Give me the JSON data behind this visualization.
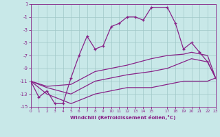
{
  "xlabel": "Windchill (Refroidissement éolien,°C)",
  "xlim": [
    0,
    23
  ],
  "ylim": [
    -15,
    1
  ],
  "yticks": [
    1,
    -1,
    -3,
    -5,
    -7,
    -9,
    -11,
    -13,
    -15
  ],
  "xticks": [
    0,
    1,
    2,
    3,
    4,
    5,
    6,
    7,
    8,
    9,
    10,
    11,
    12,
    13,
    14,
    15,
    17,
    18,
    19,
    20,
    21,
    22,
    23
  ],
  "bg_color": "#c8e8e8",
  "grid_color": "#a0c8c8",
  "line_color": "#882288",
  "line1_x": [
    0,
    1,
    2,
    3,
    4,
    5,
    6,
    7,
    8,
    9,
    10,
    11,
    12,
    13,
    14,
    15,
    17,
    18,
    19,
    20,
    21,
    22,
    23
  ],
  "line1_y": [
    -11,
    -13.5,
    -12.5,
    -14.5,
    -14.5,
    -10.5,
    -7,
    -4,
    -6,
    -5.5,
    -2.5,
    -2,
    -1,
    -1,
    -1.5,
    0.5,
    0.5,
    -2,
    -6,
    -5,
    -6.5,
    -8,
    -10.5
  ],
  "line2_x": [
    0,
    23
  ],
  "line2_y": [
    -11,
    -10.5
  ],
  "line3_x": [
    0,
    23
  ],
  "line3_y": [
    -11,
    -10.5
  ],
  "line4_x": [
    0,
    23
  ],
  "line4_y": [
    -11,
    -10.5
  ],
  "smooth2_x": [
    0,
    2,
    5,
    8,
    12,
    15,
    17,
    19,
    20,
    22,
    23
  ],
  "smooth2_y": [
    -11,
    -11.8,
    -11.5,
    -9.5,
    -8.5,
    -7.5,
    -7,
    -6.8,
    -6.5,
    -7,
    -10.5
  ],
  "smooth3_x": [
    0,
    2,
    5,
    8,
    12,
    15,
    17,
    19,
    20,
    22,
    23
  ],
  "smooth3_y": [
    -11,
    -12,
    -13,
    -11,
    -10,
    -9.5,
    -9,
    -8,
    -7.5,
    -8,
    -10.5
  ],
  "smooth4_x": [
    0,
    2,
    5,
    8,
    12,
    15,
    17,
    19,
    20,
    22,
    23
  ],
  "smooth4_y": [
    -11,
    -13,
    -14.5,
    -13,
    -12,
    -12,
    -11.5,
    -11,
    -11,
    -11,
    -10.5
  ]
}
